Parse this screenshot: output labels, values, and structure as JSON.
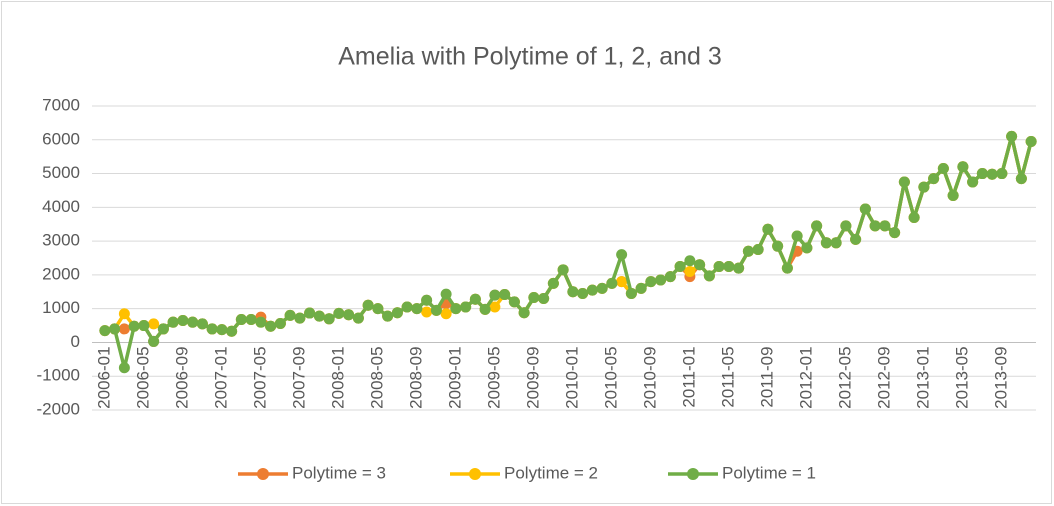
{
  "chart_data": {
    "type": "line",
    "title": "Amelia with Polytime of 1, 2, and 3",
    "categories": [
      "2006-01",
      null,
      null,
      null,
      "2006-05",
      null,
      null,
      null,
      "2006-09",
      null,
      null,
      null,
      "2007-01",
      null,
      null,
      null,
      "2007-05",
      null,
      null,
      null,
      "2007-09",
      null,
      null,
      null,
      "2008-01",
      null,
      null,
      null,
      "2008-05",
      null,
      null,
      null,
      "2008-09",
      null,
      null,
      null,
      "2009-01",
      null,
      null,
      null,
      "2009-05",
      null,
      null,
      null,
      "2009-09",
      null,
      null,
      null,
      "2010-01",
      null,
      null,
      null,
      "2010-05",
      null,
      null,
      null,
      "2010-09",
      null,
      null,
      null,
      "2011-01",
      null,
      null,
      null,
      "2011-05",
      null,
      null,
      null,
      "2011-09",
      null,
      null,
      null,
      "2012-01",
      null,
      null,
      null,
      "2012-05",
      null,
      null,
      null,
      "2012-09",
      null,
      null,
      null,
      "2013-01",
      null,
      null,
      null,
      "2013-05",
      null,
      null,
      null,
      "2013-09",
      null,
      null,
      null
    ],
    "series": [
      {
        "name": "Polytime = 3",
        "color": "#ed7d31",
        "values": [
          350,
          400,
          400,
          480,
          500,
          30,
          400,
          600,
          650,
          600,
          550,
          400,
          380,
          330,
          680,
          680,
          750,
          480,
          560,
          800,
          720,
          870,
          780,
          700,
          860,
          820,
          720,
          1100,
          1000,
          780,
          880,
          1050,
          1000,
          1250,
          950,
          1150,
          1000,
          1050,
          1280,
          980,
          1400,
          1420,
          1200,
          880,
          1330,
          1300,
          1750,
          2150,
          1500,
          1450,
          1550,
          1600,
          1750,
          1800,
          1450,
          1600,
          1800,
          1850,
          1950,
          2250,
          1950,
          2300,
          1970,
          2250,
          2250,
          2200,
          2700,
          2750,
          3350,
          2850,
          2200,
          2700,
          2800,
          3450,
          2950,
          2950,
          3450,
          3050,
          3950,
          3450,
          3450,
          3250,
          4750,
          3700,
          4600,
          4850,
          5150,
          4350,
          5200,
          4750,
          5000,
          4980,
          5000,
          6100,
          4850,
          5950
        ]
      },
      {
        "name": "Polytime = 2",
        "color": "#ffc000",
        "values": [
          350,
          400,
          850,
          480,
          500,
          550,
          400,
          600,
          650,
          600,
          550,
          400,
          380,
          330,
          680,
          680,
          600,
          480,
          560,
          800,
          720,
          870,
          780,
          700,
          860,
          820,
          720,
          1100,
          1000,
          780,
          880,
          1050,
          1000,
          900,
          950,
          850,
          1000,
          1050,
          1280,
          980,
          1050,
          1420,
          1200,
          880,
          1330,
          1300,
          1750,
          2150,
          1500,
          1450,
          1550,
          1600,
          1750,
          1800,
          1450,
          1600,
          1800,
          1850,
          1950,
          2250,
          2100,
          2300,
          1970,
          2250,
          2250,
          2200,
          2700,
          2750,
          3350,
          2850,
          2200,
          3150,
          2800,
          3450,
          2950,
          2950,
          3450,
          3050,
          3950,
          3450,
          3450,
          3250,
          4750,
          3700,
          4600,
          4850,
          5150,
          4350,
          5200,
          4750,
          5000,
          4980,
          5000,
          6100,
          4850,
          5950
        ]
      },
      {
        "name": "Polytime = 1",
        "color": "#70ad47",
        "values": [
          350,
          400,
          -750,
          480,
          500,
          30,
          400,
          600,
          650,
          600,
          550,
          400,
          380,
          330,
          680,
          680,
          600,
          480,
          560,
          800,
          720,
          870,
          780,
          700,
          860,
          820,
          720,
          1100,
          1000,
          780,
          880,
          1050,
          1000,
          1250,
          950,
          1430,
          1000,
          1050,
          1280,
          980,
          1400,
          1420,
          1200,
          880,
          1330,
          1300,
          1750,
          2150,
          1500,
          1450,
          1550,
          1600,
          1750,
          2600,
          1450,
          1600,
          1800,
          1850,
          1950,
          2250,
          2420,
          2300,
          1970,
          2250,
          2250,
          2200,
          2700,
          2750,
          3350,
          2850,
          2200,
          3150,
          2800,
          3450,
          2950,
          2950,
          3450,
          3050,
          3950,
          3450,
          3450,
          3250,
          4750,
          3700,
          4600,
          4850,
          5150,
          4350,
          5200,
          4750,
          5000,
          4980,
          5000,
          6100,
          4850,
          5950
        ]
      }
    ],
    "ylim": [
      -2000,
      7000
    ],
    "yticks": [
      -2000,
      -1000,
      0,
      1000,
      2000,
      3000,
      4000,
      5000,
      6000,
      7000
    ],
    "grid": true,
    "legend": "bottom"
  }
}
